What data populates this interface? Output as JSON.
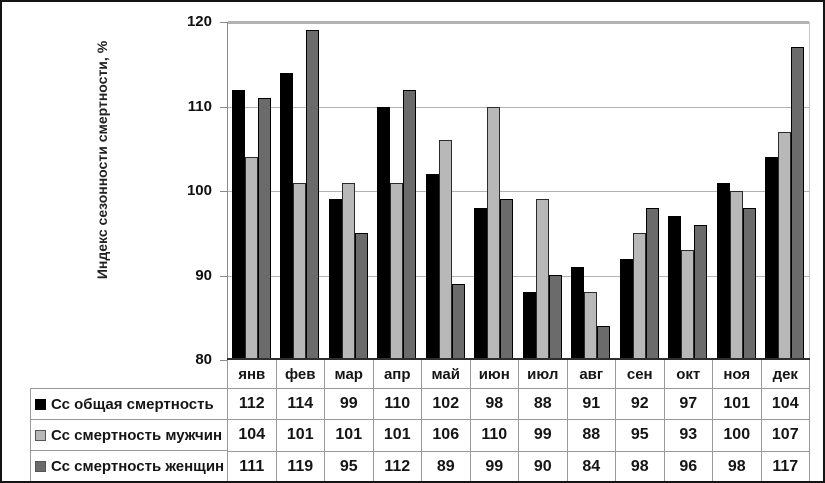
{
  "chart_data": {
    "type": "bar",
    "title": "",
    "xlabel": "",
    "ylabel": "Индекс сезонности смертности, %",
    "ylim": [
      80,
      120
    ],
    "yticks": [
      80,
      90,
      100,
      110,
      120
    ],
    "grid": true,
    "legend_position": "table-left",
    "categories": [
      "янв",
      "фев",
      "мар",
      "апр",
      "май",
      "июн",
      "июл",
      "авг",
      "сен",
      "окт",
      "ноя",
      "дек"
    ],
    "series": [
      {
        "name": "Сс общая смертность",
        "color": "#000000",
        "border_color": "#000000",
        "values": [
          112,
          114,
          99,
          110,
          102,
          98,
          88,
          91,
          92,
          97,
          101,
          104
        ]
      },
      {
        "name": "Сс смертность мужчин",
        "color": "#b8b8b8",
        "border_color": "#2b2b2b",
        "values": [
          104,
          101,
          101,
          101,
          106,
          110,
          99,
          88,
          95,
          93,
          100,
          107
        ]
      },
      {
        "name": "Сс смертность женщин",
        "color": "#6b6b6b",
        "border_color": "#000000",
        "values": [
          111,
          119,
          95,
          112,
          89,
          99,
          90,
          84,
          98,
          96,
          98,
          117
        ]
      }
    ]
  }
}
